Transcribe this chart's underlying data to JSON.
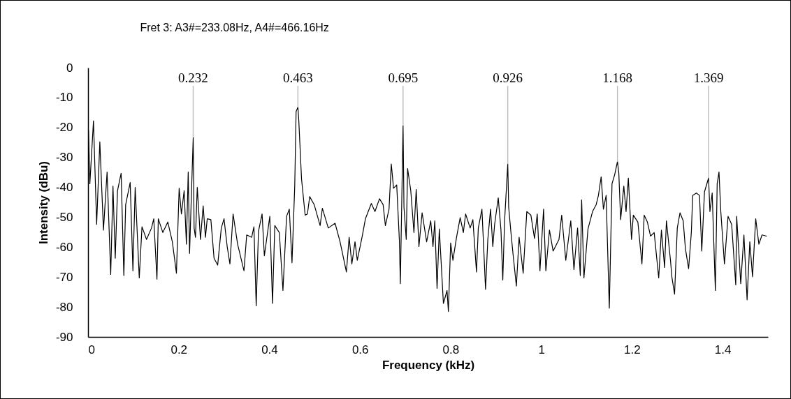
{
  "chart_data": {
    "type": "line",
    "title": "Fret 3: A3#=233.08Hz, A4#=466.16Hz",
    "xlabel": "Frequency (kHz)",
    "ylabel": "Intensity (dBu)",
    "xlim": [
      0,
      1.5
    ],
    "xticks": [
      0,
      0.2,
      0.4,
      0.6,
      0.8,
      1,
      1.2,
      1.4
    ],
    "ylim": [
      -90,
      0
    ],
    "yticks": [
      0,
      -10,
      -20,
      -30,
      -40,
      -50,
      -60,
      -70,
      -80,
      -90
    ],
    "grid": false,
    "x": [
      0.001,
      0.004,
      0.012,
      0.019,
      0.026,
      0.034,
      0.042,
      0.05,
      0.055,
      0.06,
      0.065,
      0.073,
      0.079,
      0.083,
      0.093,
      0.099,
      0.104,
      0.113,
      0.119,
      0.129,
      0.14,
      0.145,
      0.152,
      0.155,
      0.165,
      0.176,
      0.186,
      0.195,
      0.201,
      0.206,
      0.212,
      0.217,
      0.221,
      0.224,
      0.232,
      0.234,
      0.237,
      0.241,
      0.248,
      0.254,
      0.259,
      0.263,
      0.271,
      0.278,
      0.286,
      0.294,
      0.3,
      0.307,
      0.313,
      0.32,
      0.33,
      0.344,
      0.35,
      0.361,
      0.366,
      0.371,
      0.376,
      0.384,
      0.389,
      0.401,
      0.407,
      0.412,
      0.422,
      0.43,
      0.438,
      0.444,
      0.45,
      0.456,
      0.459,
      0.463,
      0.465,
      0.471,
      0.479,
      0.484,
      0.489,
      0.499,
      0.512,
      0.517,
      0.53,
      0.545,
      0.556,
      0.57,
      0.576,
      0.582,
      0.589,
      0.594,
      0.605,
      0.612,
      0.625,
      0.633,
      0.643,
      0.651,
      0.656,
      0.664,
      0.669,
      0.674,
      0.681,
      0.687,
      0.689,
      0.695,
      0.697,
      0.702,
      0.705,
      0.712,
      0.719,
      0.724,
      0.73,
      0.737,
      0.747,
      0.756,
      0.761,
      0.765,
      0.77,
      0.775,
      0.784,
      0.792,
      0.795,
      0.8,
      0.805,
      0.813,
      0.821,
      0.828,
      0.833,
      0.843,
      0.849,
      0.857,
      0.861,
      0.869,
      0.877,
      0.882,
      0.888,
      0.893,
      0.897,
      0.905,
      0.911,
      0.915,
      0.919,
      0.926,
      0.928,
      0.933,
      0.938,
      0.945,
      0.951,
      0.96,
      0.968,
      0.977,
      0.985,
      0.991,
      0.997,
      1.005,
      1.01,
      1.018,
      1.026,
      1.039,
      1.045,
      1.054,
      1.065,
      1.072,
      1.08,
      1.086,
      1.089,
      1.094,
      1.103,
      1.113,
      1.121,
      1.126,
      1.132,
      1.137,
      1.143,
      1.15,
      1.156,
      1.162,
      1.168,
      1.171,
      1.175,
      1.182,
      1.187,
      1.192,
      1.199,
      1.203,
      1.213,
      1.222,
      1.227,
      1.234,
      1.241,
      1.249,
      1.259,
      1.265,
      1.272,
      1.276,
      1.285,
      1.288,
      1.294,
      1.3,
      1.306,
      1.313,
      1.318,
      1.325,
      1.331,
      1.334,
      1.342,
      1.349,
      1.354,
      1.36,
      1.369,
      1.372,
      1.377,
      1.384,
      1.388,
      1.392,
      1.396,
      1.404,
      1.412,
      1.42,
      1.429,
      1.431,
      1.44,
      1.447,
      1.454,
      1.46,
      1.466,
      1.473,
      1.48,
      1.487,
      1.497
    ],
    "series": [
      {
        "color": "#000000",
        "values": [
          -20.9,
          -38.8,
          -17.8,
          -52.4,
          -24.8,
          -54.3,
          -34.9,
          -69.1,
          -39.6,
          -63.7,
          -41.1,
          -35.3,
          -69.5,
          -45.8,
          -38.4,
          -67.9,
          -40.0,
          -70.3,
          -53.2,
          -57.4,
          -53.6,
          -50.5,
          -70.7,
          -50.5,
          -55.1,
          -51.6,
          -58.2,
          -68.7,
          -40.3,
          -48.9,
          -41.1,
          -59.0,
          -34.9,
          -62.1,
          -23.3,
          -53.6,
          -56.7,
          -40.0,
          -57.4,
          -46.2,
          -56.7,
          -50.5,
          -50.8,
          -63.7,
          -66.0,
          -53.6,
          -50.5,
          -59.8,
          -65.6,
          -48.9,
          -59.0,
          -67.9,
          -55.9,
          -56.7,
          -53.2,
          -79.6,
          -54.7,
          -48.9,
          -62.9,
          -49.7,
          -78.8,
          -52.8,
          -55.1,
          -74.5,
          -49.7,
          -47.3,
          -65.2,
          -39.6,
          -14.7,
          -13.2,
          -17.8,
          -37.2,
          -49.3,
          -48.9,
          -43.1,
          -45.8,
          -52.8,
          -47.0,
          -53.6,
          -52.0,
          -58.2,
          -68.3,
          -56.7,
          -65.6,
          -58.2,
          -64.4,
          -56.3,
          -50.5,
          -45.4,
          -48.1,
          -43.8,
          -45.8,
          -52.8,
          -47.3,
          -32.2,
          -40.3,
          -39.2,
          -58.2,
          -72.2,
          -19.4,
          -46.6,
          -57.4,
          -33.7,
          -41.1,
          -55.1,
          -40.7,
          -59.8,
          -48.5,
          -58.2,
          -51.2,
          -59.8,
          -51.2,
          -73.8,
          -53.9,
          -78.8,
          -74.5,
          -81.5,
          -58.6,
          -64.4,
          -56.7,
          -50.1,
          -55.1,
          -48.9,
          -53.6,
          -50.8,
          -68.3,
          -53.6,
          -47.3,
          -74.1,
          -57.4,
          -47.3,
          -59.8,
          -52.4,
          -43.5,
          -54.3,
          -71.0,
          -51.2,
          -32.2,
          -46.6,
          -55.1,
          -62.9,
          -73.0,
          -56.7,
          -68.7,
          -48.1,
          -49.3,
          -57.1,
          -48.9,
          -67.9,
          -47.3,
          -67.9,
          -54.3,
          -61.3,
          -57.4,
          -49.3,
          -64.4,
          -51.2,
          -67.5,
          -53.6,
          -69.5,
          -44.2,
          -70.3,
          -53.9,
          -48.1,
          -45.8,
          -42.7,
          -36.5,
          -47.3,
          -42.7,
          -80.4,
          -38.8,
          -35.7,
          -31.4,
          -35.3,
          -50.8,
          -39.6,
          -48.1,
          -36.9,
          -57.4,
          -49.3,
          -51.6,
          -65.6,
          -49.3,
          -51.6,
          -56.3,
          -55.1,
          -70.3,
          -54.3,
          -66.8,
          -51.2,
          -64.4,
          -69.9,
          -75.7,
          -53.6,
          -48.5,
          -51.2,
          -60.6,
          -67.2,
          -55.1,
          -42.7,
          -41.9,
          -42.7,
          -61.3,
          -41.5,
          -36.9,
          -48.1,
          -41.9,
          -74.5,
          -38.8,
          -34.9,
          -48.1,
          -65.6,
          -49.7,
          -52.4,
          -72.6,
          -49.7,
          -72.2,
          -55.9,
          -77.6,
          -58.2,
          -69.9,
          -50.5,
          -59.0,
          -55.9,
          -56.3
        ]
      }
    ],
    "annotations": [
      {
        "text": "0.232",
        "x": 0.232,
        "y": -23.3
      },
      {
        "text": "0.463",
        "x": 0.463,
        "y": -13.2
      },
      {
        "text": "0.695",
        "x": 0.695,
        "y": -19.4
      },
      {
        "text": "0.926",
        "x": 0.926,
        "y": -32.2
      },
      {
        "text": "1.168",
        "x": 1.168,
        "y": -31.4
      },
      {
        "text": "1.369",
        "x": 1.369,
        "y": -36.9
      }
    ]
  }
}
